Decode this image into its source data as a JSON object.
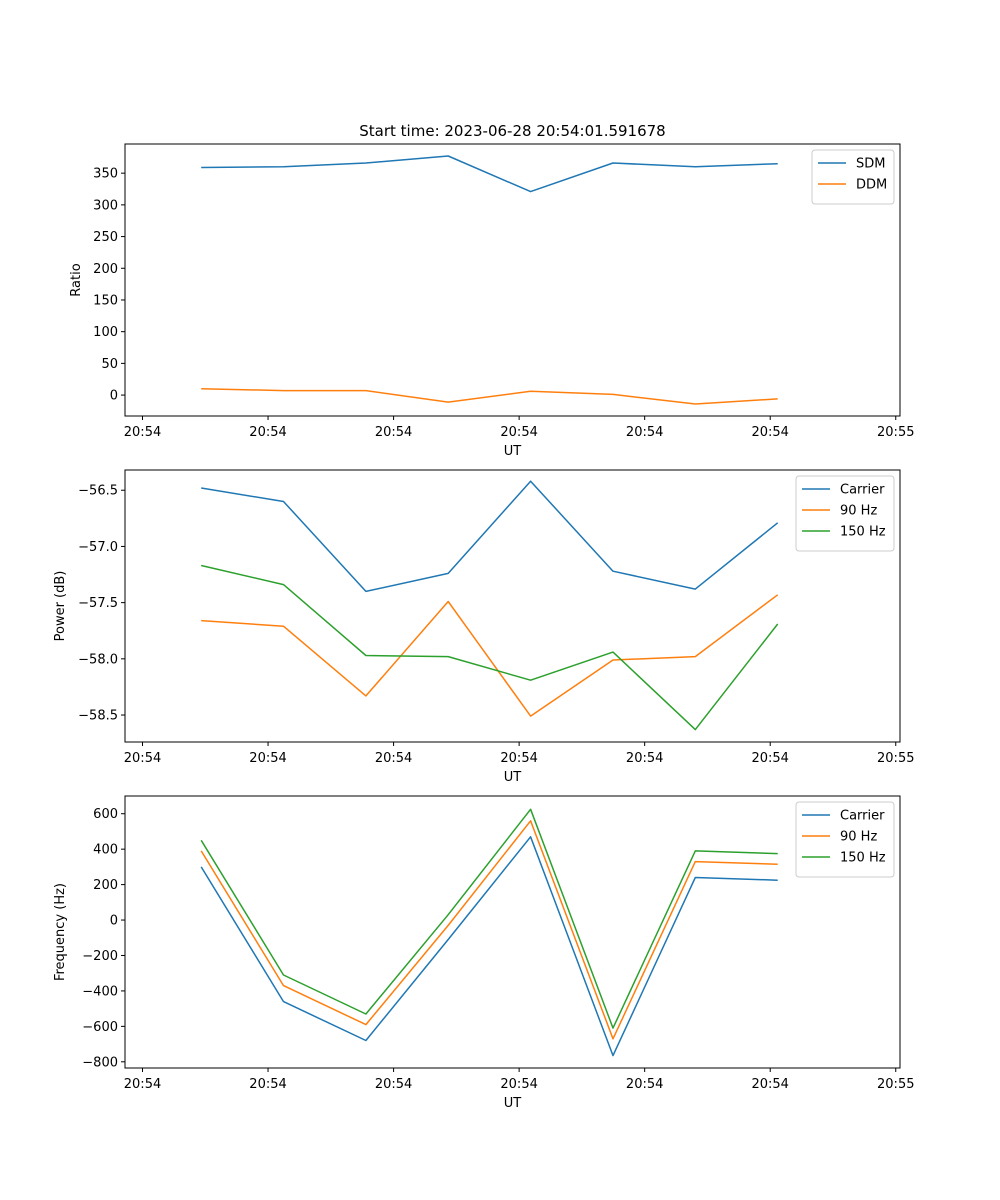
{
  "figure": {
    "title": "Start time: 2023-06-28 20:54:01.591678"
  },
  "chart_data": [
    {
      "type": "line",
      "title": "Start time: 2023-06-28 20:54:01.591678",
      "xlabel": "UT",
      "ylabel": "Ratio",
      "x_tick_labels": [
        "20:54",
        "20:54",
        "20:54",
        "20:54",
        "20:54",
        "20:54",
        "20:55"
      ],
      "y_ticks": [
        0,
        50,
        100,
        150,
        200,
        250,
        300,
        350
      ],
      "ylim": [
        -33,
        396
      ],
      "xlim": [
        0,
        30.25
      ],
      "x": [
        2.35,
        5.65,
        8.95,
        12.25,
        15.55,
        18.85,
        22.15,
        25.45
      ],
      "grid": false,
      "legend_position": "top-right",
      "series": [
        {
          "name": "SDM",
          "color": "#1f77b4",
          "values": [
            359,
            360,
            366,
            377,
            321,
            366,
            360,
            365
          ]
        },
        {
          "name": "DDM",
          "color": "#ff7f0e",
          "values": [
            10,
            7,
            7,
            -11,
            6,
            1,
            -14,
            -6
          ]
        }
      ]
    },
    {
      "type": "line",
      "title": "",
      "xlabel": "UT",
      "ylabel": "Power (dB)",
      "x_tick_labels": [
        "20:54",
        "20:54",
        "20:54",
        "20:54",
        "20:54",
        "20:54",
        "20:55"
      ],
      "y_ticks": [
        -58.5,
        -58.0,
        -57.5,
        -57.0,
        -56.5
      ],
      "y_tick_labels": [
        "−58.5",
        "−58.0",
        "−57.5",
        "−57.0",
        "−56.5"
      ],
      "ylim": [
        -58.74,
        -56.32
      ],
      "xlim": [
        0,
        30.25
      ],
      "x": [
        2.35,
        5.65,
        8.95,
        12.25,
        15.55,
        18.85,
        22.15,
        25.45
      ],
      "grid": false,
      "legend_position": "top-right",
      "series": [
        {
          "name": "Carrier",
          "color": "#1f77b4",
          "values": [
            -56.48,
            -56.6,
            -57.4,
            -57.24,
            -56.42,
            -57.22,
            -57.38,
            -56.79
          ]
        },
        {
          "name": "90 Hz",
          "color": "#ff7f0e",
          "values": [
            -57.66,
            -57.71,
            -58.33,
            -57.49,
            -58.51,
            -58.01,
            -57.98,
            -57.43
          ]
        },
        {
          "name": "150 Hz",
          "color": "#2ca02c",
          "values": [
            -57.17,
            -57.34,
            -57.97,
            -57.98,
            -58.19,
            -57.94,
            -58.63,
            -57.69
          ]
        }
      ]
    },
    {
      "type": "line",
      "title": "",
      "xlabel": "UT",
      "ylabel": "Frequency (Hz)",
      "x_tick_labels": [
        "20:54",
        "20:54",
        "20:54",
        "20:54",
        "20:54",
        "20:54",
        "20:55"
      ],
      "y_ticks": [
        -800,
        -600,
        -400,
        -200,
        0,
        200,
        400,
        600
      ],
      "y_tick_labels": [
        "−800",
        "−600",
        "−400",
        "−200",
        "0",
        "200",
        "400",
        "600"
      ],
      "ylim": [
        -835,
        700
      ],
      "xlim": [
        0,
        30.25
      ],
      "x": [
        2.35,
        5.65,
        8.95,
        12.25,
        15.55,
        18.85,
        22.15,
        25.45
      ],
      "grid": false,
      "legend_position": "top-right",
      "series": [
        {
          "name": "Carrier",
          "color": "#1f77b4",
          "values": [
            300,
            -460,
            -680,
            -110,
            470,
            -765,
            240,
            225
          ]
        },
        {
          "name": "90 Hz",
          "color": "#ff7f0e",
          "values": [
            390,
            -370,
            -590,
            -30,
            560,
            -670,
            330,
            315
          ]
        },
        {
          "name": "150 Hz",
          "color": "#2ca02c",
          "values": [
            450,
            -310,
            -530,
            30,
            625,
            -610,
            390,
            375
          ]
        }
      ]
    }
  ]
}
